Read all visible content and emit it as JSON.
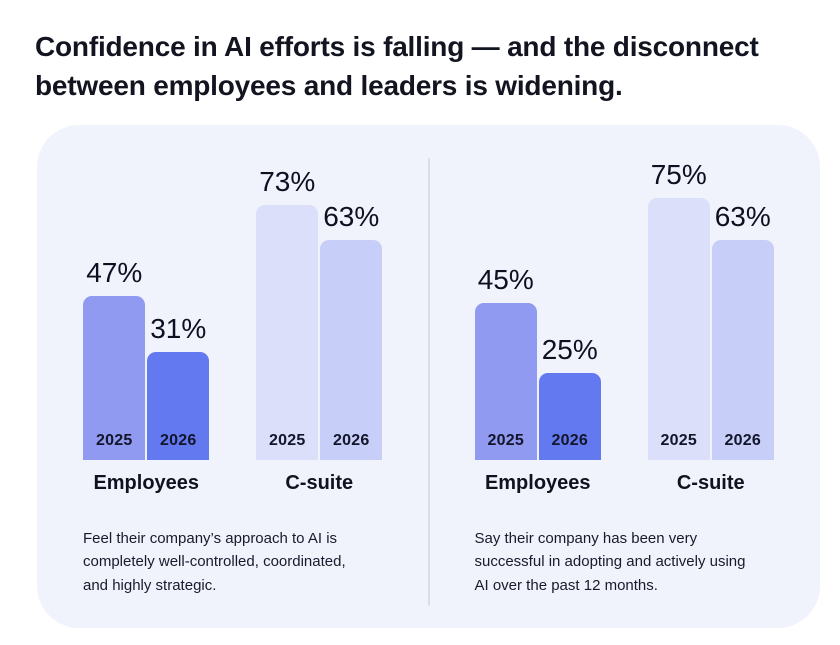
{
  "page": {
    "title_line1": "Confidence in AI efforts is falling — and the disconnect",
    "title_line2": "between employees and leaders is widening."
  },
  "colors": {
    "card_bg": "#f0f3fc",
    "divider": "#d9dce9",
    "text": "#101223",
    "bar_employees_2025": "#8f9af0",
    "bar_employees_2026": "#6379ef",
    "bar_csuite_2025": "#dbdffa",
    "bar_csuite_2026": "#c7cef7"
  },
  "chart_data": [
    {
      "type": "bar",
      "categories": [
        "Employees",
        "C-suite"
      ],
      "series": [
        {
          "name": "2025",
          "values": [
            47,
            73
          ]
        },
        {
          "name": "2026",
          "values": [
            31,
            63
          ]
        }
      ],
      "value_suffix": "%",
      "ylim": [
        0,
        100
      ],
      "legend_position": "none",
      "grid": false,
      "caption": "Feel their company’s approach to AI is completely well-controlled, coordinated, and highly strategic."
    },
    {
      "type": "bar",
      "categories": [
        "Employees",
        "C-suite"
      ],
      "series": [
        {
          "name": "2025",
          "values": [
            45,
            75
          ]
        },
        {
          "name": "2026",
          "values": [
            25,
            63
          ]
        }
      ],
      "value_suffix": "%",
      "ylim": [
        0,
        100
      ],
      "legend_position": "none",
      "grid": false,
      "caption": "Say their company has been very successful in adopting and actively using AI over the past 12 months."
    }
  ]
}
